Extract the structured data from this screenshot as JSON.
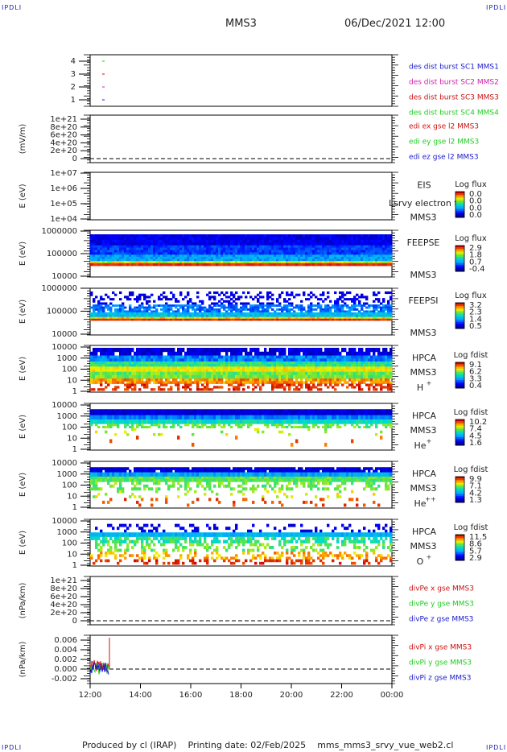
{
  "header": {
    "corner_label": "IPDLI",
    "mission": "MMS3",
    "datetime": "06/Dec/2021 12:00"
  },
  "footer": {
    "produced_by": "Produced by cl (IRAP)",
    "printing_date": "Printing date: 02/Feb/2025",
    "script": "mms_mms3_srvy_vue_web2.cl"
  },
  "colors": {
    "spacecraft": [
      "#1a1acc",
      "#cc22aa",
      "#cc1111",
      "#22cc22"
    ],
    "components": [
      "#cc1111",
      "#22cc22",
      "#1a1acc"
    ]
  },
  "chart_data": [
    {
      "type": "scatter",
      "panel": "spacecraft",
      "ylim": [
        0.5,
        4.5
      ],
      "yticks": [
        "1",
        "2",
        "3",
        "4"
      ],
      "series": [
        {
          "name": "des dist burst SC1 MMS1",
          "values": [
            1
          ]
        },
        {
          "name": "des dist burst SC2 MMS2",
          "values": [
            2
          ]
        },
        {
          "name": "des dist burst SC3 MMS3",
          "values": [
            3
          ]
        },
        {
          "name": "des dist burst SC4 MMS4",
          "values": [
            4
          ]
        }
      ]
    },
    {
      "type": "line",
      "panel": "edi",
      "ylabel": "(mV/m)",
      "yticks": [
        "1e+21",
        "8e+20",
        "6e+20",
        "4e+20",
        "2e+20",
        "0"
      ],
      "series": [
        {
          "name": "edi ex gse l2 MMS3"
        },
        {
          "name": "edi ey gse l2 MMS3"
        },
        {
          "name": "edi ez gse l2 MMS3"
        }
      ]
    },
    {
      "type": "heatmap",
      "panel": "eis",
      "ylabel": "E (eV)",
      "yticks": [
        "1e+07",
        "1e+06",
        "1e+05",
        "1e+04"
      ],
      "instrument": "EIS",
      "sc": "MMS3",
      "overlay_text": "Lsrvy electron to",
      "colorbar_title": "Log flux",
      "colorbar_ticks": [
        "0.0",
        "0.0",
        "0.0",
        "0.0"
      ]
    },
    {
      "type": "heatmap",
      "panel": "feepse",
      "ylabel": "E (eV)",
      "yticks": [
        "1000000",
        "100000",
        "10000"
      ],
      "instrument": "FEEPSE",
      "sc": "MMS3",
      "colorbar_title": "Log flux",
      "colorbar_ticks": [
        "2.9",
        "1.8",
        "0.7",
        "-0.4"
      ]
    },
    {
      "type": "heatmap",
      "panel": "feepsi",
      "ylabel": "E (eV)",
      "yticks": [
        "1000000",
        "100000",
        "10000"
      ],
      "instrument": "FEEPSI",
      "sc": "MMS3",
      "colorbar_title": "Log flux",
      "colorbar_ticks": [
        "3.2",
        "2.3",
        "1.4",
        "0.5"
      ]
    },
    {
      "type": "heatmap",
      "panel": "hpca_h",
      "ylabel": "E (eV)",
      "yticks": [
        "10000",
        "1000",
        "100",
        "10",
        "1"
      ],
      "instrument": "HPCA",
      "sc": "MMS3",
      "species": "H",
      "charge": "+",
      "colorbar_title": "Log fdist",
      "colorbar_ticks": [
        "9.1",
        "6.2",
        "3.3",
        "0.4"
      ]
    },
    {
      "type": "heatmap",
      "panel": "hpca_he",
      "ylabel": "E (eV)",
      "yticks": [
        "10000",
        "1000",
        "100",
        "10",
        "1"
      ],
      "instrument": "HPCA",
      "sc": "MMS3",
      "species": "He",
      "charge": "+",
      "colorbar_title": "Log fdist",
      "colorbar_ticks": [
        "10.2",
        "7.4",
        "4.5",
        "1.6"
      ]
    },
    {
      "type": "heatmap",
      "panel": "hpca_hepp",
      "ylabel": "E (eV)",
      "yticks": [
        "10000",
        "1000",
        "100",
        "10",
        "1"
      ],
      "instrument": "HPCA",
      "sc": "MMS3",
      "species": "He",
      "charge": "++",
      "colorbar_title": "Log fdist",
      "colorbar_ticks": [
        "9.9",
        "7.1",
        "4.2",
        "1.3"
      ]
    },
    {
      "type": "heatmap",
      "panel": "hpca_o",
      "ylabel": "E (eV)",
      "yticks": [
        "10000",
        "1000",
        "100",
        "10",
        "1"
      ],
      "instrument": "HPCA",
      "sc": "MMS3",
      "species": "O",
      "charge": "+",
      "colorbar_title": "Log fdist",
      "colorbar_ticks": [
        "11.5",
        "8.6",
        "5.7",
        "2.9"
      ]
    },
    {
      "type": "line",
      "panel": "divpe",
      "ylabel": "(nPa/km)",
      "yticks": [
        "1e+21",
        "8e+20",
        "6e+20",
        "4e+20",
        "2e+20",
        "0"
      ],
      "series": [
        {
          "name": "divPe x gse MMS3"
        },
        {
          "name": "divPe y gse MMS3"
        },
        {
          "name": "divPe z gse MMS3"
        }
      ]
    },
    {
      "type": "line",
      "panel": "divpi",
      "ylabel": "(nPa/km)",
      "yticks": [
        "0.006",
        "0.004",
        "0.002",
        "0.000",
        "-0.002"
      ],
      "ylim": [
        -0.003,
        0.007
      ],
      "series": [
        {
          "name": "divPi x gse MMS3"
        },
        {
          "name": "divPi y gse MMS3"
        },
        {
          "name": "divPi z gse MMS3"
        }
      ]
    }
  ],
  "time_axis": {
    "ticks": [
      "12:00",
      "14:00",
      "16:00",
      "18:00",
      "20:00",
      "22:00",
      "00:00"
    ]
  }
}
